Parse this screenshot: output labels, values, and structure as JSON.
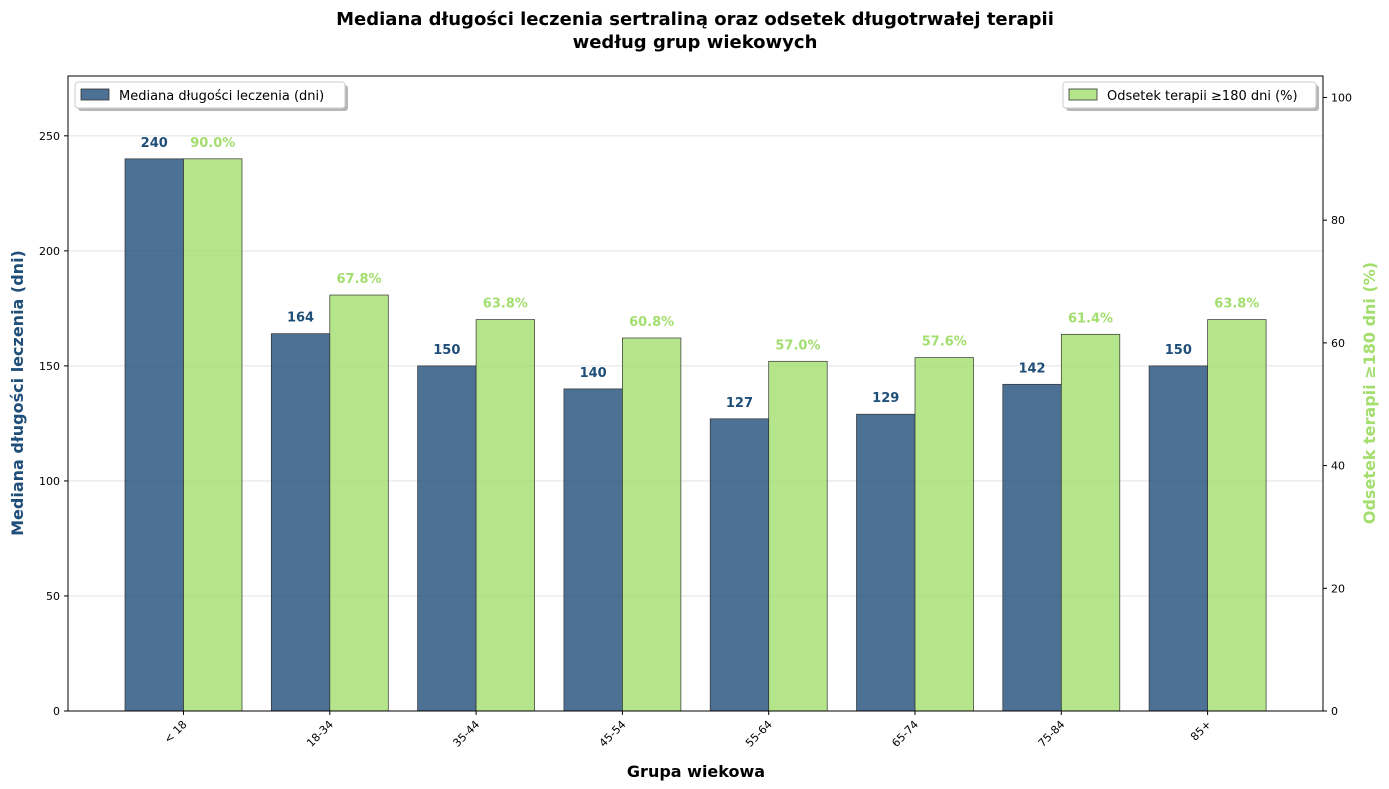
{
  "chart_data": {
    "type": "bar",
    "title_line1": "Mediana długości leczenia sertraliną oraz odsetek długotrwałej terapii",
    "title_line2": "według grup wiekowych",
    "xlabel": "Grupa wiekowa",
    "ylabel_left": "Mediana długości leczenia (dni)",
    "ylabel_right": "Odsetek terapii ≥180 dni (%)",
    "categories": [
      "< 18",
      "18-34",
      "35-44",
      "45-54",
      "55-64",
      "65-74",
      "75-84",
      "85+"
    ],
    "series": [
      {
        "name": "Mediana długości leczenia (dni)",
        "axis": "left",
        "color": "#1f4e79",
        "values": [
          240,
          164,
          150,
          140,
          127,
          129,
          142,
          150
        ],
        "labels": [
          "240",
          "164",
          "150",
          "140",
          "127",
          "129",
          "142",
          "150"
        ]
      },
      {
        "name": "Odsetek terapii ≥180 dni (%)",
        "axis": "right",
        "color": "#a3de6e",
        "values": [
          90.0,
          67.8,
          63.8,
          60.8,
          57.0,
          57.6,
          61.4,
          63.8
        ],
        "labels": [
          "90.0%",
          "67.8%",
          "63.8%",
          "60.8%",
          "57.0%",
          "57.6%",
          "61.4%",
          "63.8%"
        ]
      }
    ],
    "ylim_left": [
      0,
      276
    ],
    "yticks_left": [
      0,
      50,
      100,
      150,
      200,
      250
    ],
    "ylim_right": [
      0,
      103.5
    ],
    "yticks_right": [
      0,
      20,
      40,
      60,
      80,
      100
    ],
    "grid": true,
    "legend_left_placement": "upper-left",
    "legend_right_placement": "upper-right"
  }
}
